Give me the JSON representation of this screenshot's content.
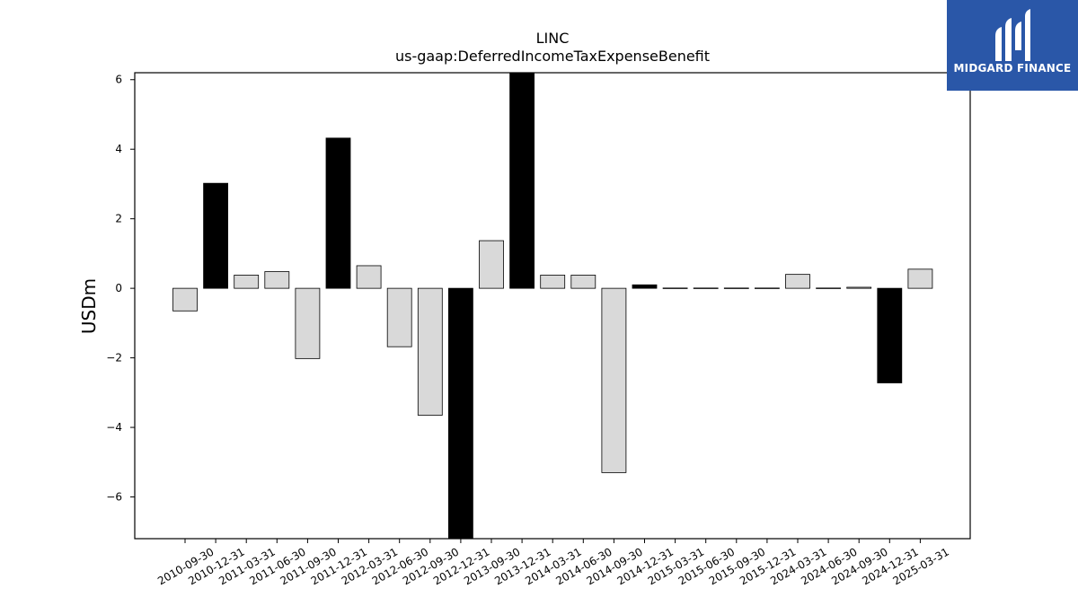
{
  "logo": {
    "brand_name": "MIDGARD FINANCE",
    "icon": "midgard-logo-icon",
    "color": "#2a57a8"
  },
  "chart_data": {
    "type": "bar",
    "title": "LINC",
    "subtitle": "us-gaap:DeferredIncomeTaxExpenseBenefit",
    "xlabel": "",
    "ylabel": "USDm",
    "ylim": [
      -7.2,
      6.2
    ],
    "yticks": [
      -6,
      -4,
      -2,
      0,
      2,
      4,
      6
    ],
    "grid": false,
    "colors": {
      "quarterly": "#d9d9d9",
      "annual": "#000000",
      "edge": "#000000"
    },
    "categories": [
      "2010-09-30",
      "2010-12-31",
      "2011-03-31",
      "2011-06-30",
      "2011-09-30",
      "2011-12-31",
      "2012-03-31",
      "2012-06-30",
      "2012-09-30",
      "2012-12-31",
      "2013-09-30",
      "2013-12-31",
      "2014-03-31",
      "2014-06-30",
      "2014-09-30",
      "2014-12-31",
      "2015-03-31",
      "2015-06-30",
      "2015-09-30",
      "2015-12-31",
      "2024-03-31",
      "2024-06-30",
      "2024-09-30",
      "2024-12-31",
      "2025-03-31"
    ],
    "values": [
      -0.65,
      3.02,
      0.38,
      0.48,
      -2.02,
      4.32,
      0.65,
      -1.68,
      -3.65,
      -7.5,
      1.37,
      6.5,
      0.38,
      0.38,
      -5.3,
      0.1,
      -0.01,
      -0.01,
      -0.01,
      -0.01,
      0.4,
      -0.01,
      0.03,
      -2.72,
      0.55
    ],
    "fill": [
      "quarterly",
      "annual",
      "quarterly",
      "quarterly",
      "quarterly",
      "annual",
      "quarterly",
      "quarterly",
      "quarterly",
      "annual",
      "quarterly",
      "annual",
      "quarterly",
      "quarterly",
      "quarterly",
      "annual",
      "quarterly",
      "quarterly",
      "quarterly",
      "quarterly",
      "quarterly",
      "quarterly",
      "quarterly",
      "annual",
      "quarterly"
    ]
  }
}
